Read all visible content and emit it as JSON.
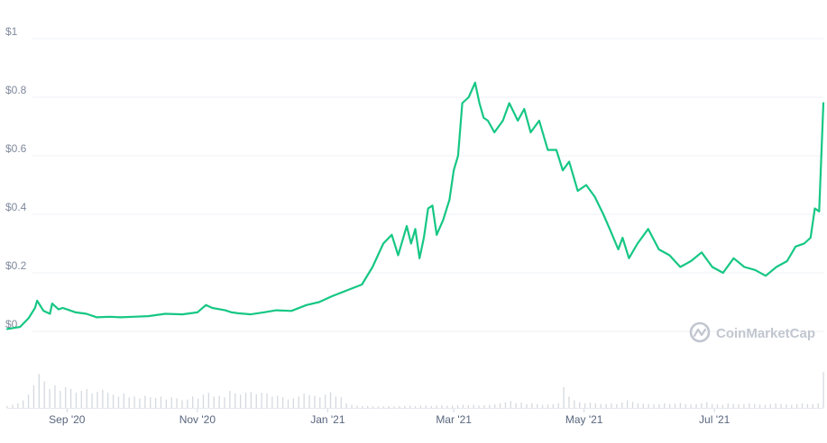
{
  "chart_data": {
    "type": "line",
    "title": "",
    "xlabel": "",
    "ylabel": "",
    "y_tick_labels": [
      "$0",
      "$0.2",
      "$0.4",
      "$0.6",
      "$0.8",
      "$1"
    ],
    "y_tick_values": [
      0,
      0.2,
      0.4,
      0.6,
      0.8,
      1
    ],
    "ylim": [
      0,
      1
    ],
    "xlim": [
      "2020-08-04",
      "2021-08-21"
    ],
    "x_ticks": [
      {
        "label": "Sep '20",
        "date": "2020-09-01"
      },
      {
        "label": "Nov '20",
        "date": "2020-11-01"
      },
      {
        "label": "Jan '21",
        "date": "2021-01-01"
      },
      {
        "label": "Mar '21",
        "date": "2021-03-01"
      },
      {
        "label": "May '21",
        "date": "2021-05-01"
      },
      {
        "label": "Jul '21",
        "date": "2021-07-01"
      }
    ],
    "grid": true,
    "legend": "none",
    "line_color": "#16c784",
    "series": [
      {
        "x": [
          "2020-08-04",
          "2020-08-10",
          "2020-08-14",
          "2020-08-17",
          "2020-08-18",
          "2020-08-21",
          "2020-08-24",
          "2020-08-25",
          "2020-08-28",
          "2020-08-30",
          "2020-09-01",
          "2020-09-05",
          "2020-09-10",
          "2020-09-15",
          "2020-09-21",
          "2020-09-26",
          "2020-10-02",
          "2020-10-09",
          "2020-10-17",
          "2020-10-25",
          "2020-11-01",
          "2020-11-05",
          "2020-11-08",
          "2020-11-14",
          "2020-11-17",
          "2020-11-20",
          "2020-11-26",
          "2020-12-02",
          "2020-12-08",
          "2020-12-15",
          "2020-12-22",
          "2020-12-28",
          "2021-01-03",
          "2021-01-10",
          "2021-01-17",
          "2021-01-22",
          "2021-01-27",
          "2021-01-31",
          "2021-02-03",
          "2021-02-07",
          "2021-02-09",
          "2021-02-11",
          "2021-02-13",
          "2021-02-15",
          "2021-02-17",
          "2021-02-19",
          "2021-02-21",
          "2021-02-24",
          "2021-02-27",
          "2021-03-01",
          "2021-03-03",
          "2021-03-05",
          "2021-03-08",
          "2021-03-11",
          "2021-03-13",
          "2021-03-15",
          "2021-03-17",
          "2021-03-20",
          "2021-03-24",
          "2021-03-27",
          "2021-03-31",
          "2021-04-03",
          "2021-04-06",
          "2021-04-10",
          "2021-04-14",
          "2021-04-18",
          "2021-04-21",
          "2021-04-24",
          "2021-04-28",
          "2021-05-02",
          "2021-05-06",
          "2021-05-10",
          "2021-05-13",
          "2021-05-17",
          "2021-05-19",
          "2021-05-22",
          "2021-05-26",
          "2021-05-31",
          "2021-06-05",
          "2021-06-10",
          "2021-06-15",
          "2021-06-20",
          "2021-06-25",
          "2021-06-30",
          "2021-07-05",
          "2021-07-10",
          "2021-07-15",
          "2021-07-20",
          "2021-07-25",
          "2021-07-30",
          "2021-08-04",
          "2021-08-08",
          "2021-08-12",
          "2021-08-15",
          "2021-08-17",
          "2021-08-19",
          "2021-08-21"
        ],
        "y": [
          0.008,
          0.015,
          0.045,
          0.08,
          0.105,
          0.07,
          0.06,
          0.095,
          0.075,
          0.08,
          0.075,
          0.065,
          0.06,
          0.048,
          0.05,
          0.048,
          0.05,
          0.052,
          0.06,
          0.058,
          0.065,
          0.09,
          0.08,
          0.072,
          0.065,
          0.062,
          0.058,
          0.065,
          0.072,
          0.07,
          0.09,
          0.1,
          0.12,
          0.14,
          0.16,
          0.22,
          0.3,
          0.33,
          0.26,
          0.36,
          0.3,
          0.35,
          0.25,
          0.32,
          0.42,
          0.43,
          0.33,
          0.38,
          0.45,
          0.55,
          0.6,
          0.78,
          0.8,
          0.85,
          0.78,
          0.73,
          0.72,
          0.68,
          0.72,
          0.78,
          0.72,
          0.76,
          0.68,
          0.72,
          0.62,
          0.62,
          0.55,
          0.58,
          0.48,
          0.5,
          0.46,
          0.4,
          0.35,
          0.28,
          0.32,
          0.25,
          0.3,
          0.35,
          0.28,
          0.26,
          0.22,
          0.24,
          0.27,
          0.22,
          0.2,
          0.25,
          0.22,
          0.21,
          0.19,
          0.22,
          0.24,
          0.29,
          0.3,
          0.32,
          0.42,
          0.41,
          0.78
        ]
      }
    ],
    "volume_series": {
      "x_range": [
        "2020-08-04",
        "2021-08-21"
      ],
      "relative_values": [
        0.05,
        0.08,
        0.12,
        0.2,
        0.35,
        0.6,
        0.9,
        0.7,
        0.5,
        0.6,
        0.45,
        0.55,
        0.5,
        0.4,
        0.45,
        0.5,
        0.38,
        0.42,
        0.48,
        0.4,
        0.35,
        0.3,
        0.38,
        0.28,
        0.3,
        0.25,
        0.32,
        0.28,
        0.26,
        0.3,
        0.22,
        0.28,
        0.25,
        0.2,
        0.22,
        0.3,
        0.25,
        0.35,
        0.4,
        0.3,
        0.32,
        0.28,
        0.45,
        0.38,
        0.35,
        0.4,
        0.42,
        0.36,
        0.4,
        0.38,
        0.3,
        0.32,
        0.28,
        0.22,
        0.25,
        0.3,
        0.38,
        0.34,
        0.32,
        0.28,
        0.35,
        0.42,
        0.3,
        0.28,
        0.12,
        0.08,
        0.06,
        0.05,
        0.05,
        0.04,
        0.04,
        0.04,
        0.05,
        0.04,
        0.05,
        0.05,
        0.06,
        0.05,
        0.06,
        0.06,
        0.05,
        0.06,
        0.07,
        0.06,
        0.06,
        0.07,
        0.08,
        0.07,
        0.08,
        0.06,
        0.07,
        0.08,
        0.09,
        0.12,
        0.15,
        0.18,
        0.12,
        0.14,
        0.1,
        0.12,
        0.1,
        0.08,
        0.09,
        0.1,
        0.12,
        0.55,
        0.3,
        0.2,
        0.15,
        0.12,
        0.14,
        0.12,
        0.1,
        0.1,
        0.12,
        0.1,
        0.14,
        0.2,
        0.16,
        0.12,
        0.11,
        0.1,
        0.09,
        0.1,
        0.12,
        0.1,
        0.11,
        0.13,
        0.1,
        0.09,
        0.1,
        0.12,
        0.15,
        0.1,
        0.09,
        0.08,
        0.12,
        0.1,
        0.09,
        0.1,
        0.12,
        0.1,
        0.09,
        0.08,
        0.1,
        0.12,
        0.1,
        0.09,
        0.08,
        0.1,
        0.12,
        0.1,
        0.1,
        0.12,
        0.95
      ]
    },
    "watermark": "CoinMarketCap",
    "watermark_icon": "coinmarketcap-logo-icon"
  }
}
